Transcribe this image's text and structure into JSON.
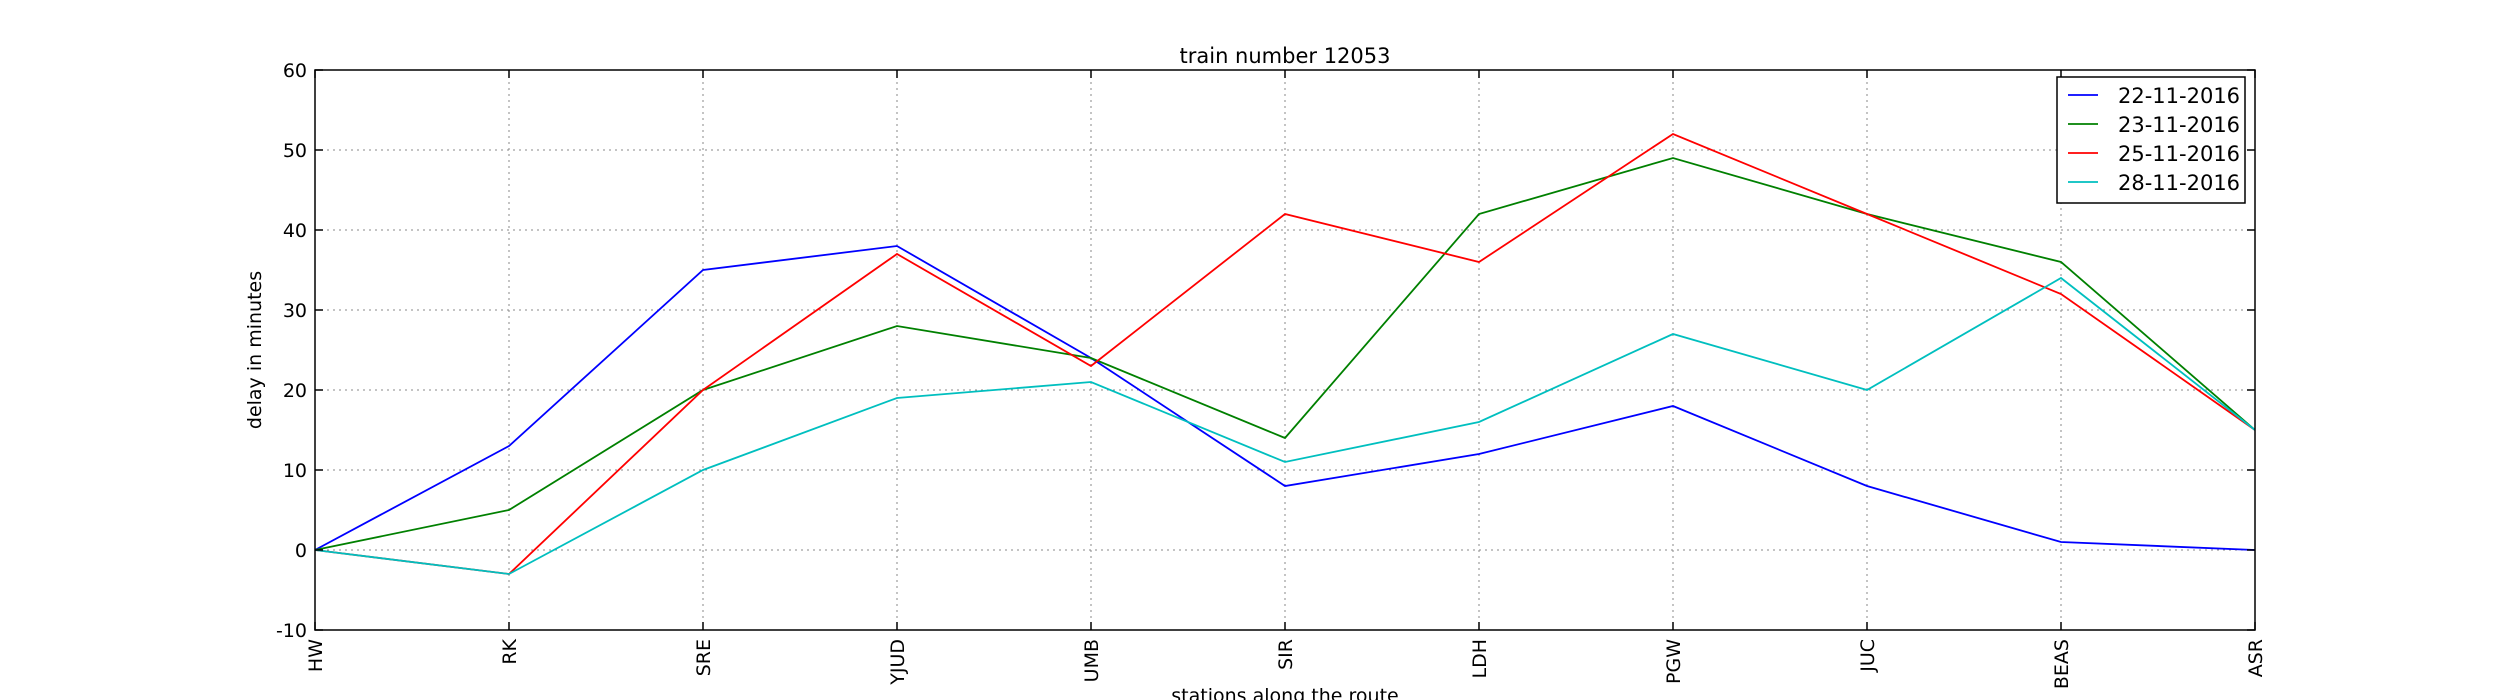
{
  "chart_data": {
    "type": "line",
    "title": "train number 12053",
    "xlabel": "stations along the route",
    "ylabel": "delay in minutes",
    "categories": [
      "HW",
      "RK",
      "SRE",
      "YJUD",
      "UMB",
      "SIR",
      "LDH",
      "PGW",
      "JUC",
      "BEAS",
      "ASR"
    ],
    "ylim": [
      -10,
      60
    ],
    "yticks": [
      -10,
      0,
      10,
      20,
      30,
      40,
      50,
      60
    ],
    "grid": true,
    "legend_position": "top-right",
    "series": [
      {
        "name": "22-11-2016",
        "color": "#0000ff",
        "values": [
          0,
          13,
          35,
          38,
          24,
          8,
          12,
          18,
          8,
          1,
          0
        ]
      },
      {
        "name": "23-11-2016",
        "color": "#008000",
        "values": [
          0,
          5,
          20,
          28,
          24,
          14,
          42,
          49,
          42,
          36,
          15
        ]
      },
      {
        "name": "25-11-2016",
        "color": "#ff0000",
        "values": [
          0,
          -3,
          20,
          37,
          23,
          42,
          36,
          52,
          42,
          32,
          15
        ]
      },
      {
        "name": "28-11-2016",
        "color": "#00bfbf",
        "values": [
          0,
          -3,
          10,
          19,
          21,
          11,
          16,
          27,
          20,
          34,
          15
        ]
      }
    ]
  }
}
